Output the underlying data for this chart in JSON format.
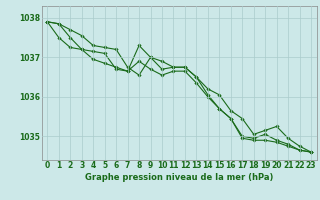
{
  "title": "Graphe pression niveau de la mer (hPa)",
  "bg_color": "#cce8e8",
  "grid_color": "#aacccc",
  "line_color": "#1a6b1a",
  "xlim_min": -0.5,
  "xlim_max": 23.5,
  "ylim_min": 1034.4,
  "ylim_max": 1038.3,
  "yticks": [
    1035,
    1036,
    1037,
    1038
  ],
  "xticks": [
    0,
    1,
    2,
    3,
    4,
    5,
    6,
    7,
    8,
    9,
    10,
    11,
    12,
    13,
    14,
    15,
    16,
    17,
    18,
    19,
    20,
    21,
    22,
    23
  ],
  "series1": [
    1037.9,
    1037.85,
    1037.5,
    1037.2,
    1036.95,
    1036.85,
    1036.75,
    1036.65,
    1036.9,
    1036.7,
    1036.55,
    1036.65,
    1036.65,
    1036.35,
    1036.0,
    1035.7,
    1035.45,
    1035.0,
    1034.95,
    1035.05,
    1034.9,
    1034.8,
    1034.65,
    1034.6
  ],
  "series2": [
    1037.9,
    1037.85,
    1037.7,
    1037.55,
    1037.3,
    1037.25,
    1037.2,
    1036.75,
    1036.55,
    1037.0,
    1036.9,
    1036.75,
    1036.75,
    1036.5,
    1036.05,
    1035.7,
    1035.45,
    1034.95,
    1034.9,
    1034.9,
    1034.85,
    1034.75,
    1034.65,
    1034.6
  ],
  "series3": [
    1037.9,
    1037.5,
    1037.25,
    1037.2,
    1037.15,
    1037.1,
    1036.7,
    1036.65,
    1037.3,
    1037.0,
    1036.7,
    1036.75,
    1036.75,
    1036.5,
    1036.2,
    1036.05,
    1035.65,
    1035.45,
    1035.05,
    1035.15,
    1035.25,
    1034.95,
    1034.75,
    1034.6
  ],
  "tick_fontsize": 5.5,
  "xlabel_fontsize": 6.0,
  "marker_size": 1.8,
  "line_width": 0.8
}
